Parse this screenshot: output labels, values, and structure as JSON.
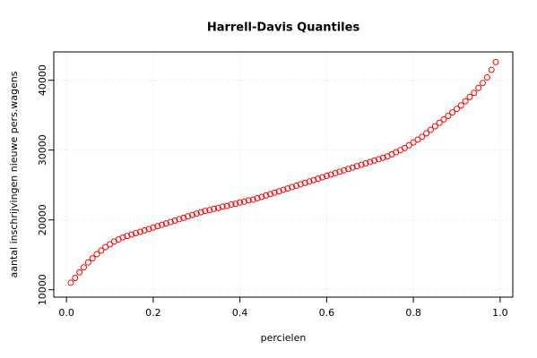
{
  "chart_data": {
    "type": "scatter",
    "title": "Harrell-Davis Quantiles",
    "x_label": "percielen",
    "y_label": "aantal inschrijvingen nieuwe pers.wagens",
    "x": [
      0.01,
      0.02,
      0.03,
      0.04,
      0.05,
      0.06,
      0.07,
      0.08,
      0.09,
      0.1,
      0.11,
      0.12,
      0.13,
      0.14,
      0.15,
      0.16,
      0.17,
      0.18,
      0.19,
      0.2,
      0.21,
      0.22,
      0.23,
      0.24,
      0.25,
      0.26,
      0.27,
      0.28,
      0.29,
      0.3,
      0.31,
      0.32,
      0.33,
      0.34,
      0.35,
      0.36,
      0.37,
      0.38,
      0.39,
      0.4,
      0.41,
      0.42,
      0.43,
      0.44,
      0.45,
      0.46,
      0.47,
      0.48,
      0.49,
      0.5,
      0.51,
      0.52,
      0.53,
      0.54,
      0.55,
      0.56,
      0.57,
      0.58,
      0.59,
      0.6,
      0.61,
      0.62,
      0.63,
      0.64,
      0.65,
      0.66,
      0.67,
      0.68,
      0.69,
      0.7,
      0.71,
      0.72,
      0.73,
      0.74,
      0.75,
      0.76,
      0.77,
      0.78,
      0.79,
      0.8,
      0.81,
      0.82,
      0.83,
      0.84,
      0.85,
      0.86,
      0.87,
      0.88,
      0.89,
      0.9,
      0.91,
      0.92,
      0.93,
      0.94,
      0.95,
      0.96,
      0.97,
      0.98,
      0.99
    ],
    "values": [
      11000,
      11700,
      12500,
      13200,
      13900,
      14500,
      15100,
      15600,
      16100,
      16500,
      16900,
      17200,
      17500,
      17700,
      17900,
      18100,
      18300,
      18500,
      18700,
      18900,
      19100,
      19300,
      19500,
      19700,
      19900,
      20100,
      20300,
      20500,
      20700,
      20900,
      21100,
      21300,
      21400,
      21600,
      21700,
      21900,
      22000,
      22200,
      22300,
      22500,
      22600,
      22800,
      22900,
      23100,
      23300,
      23500,
      23700,
      23900,
      24100,
      24300,
      24500,
      24700,
      24900,
      25100,
      25300,
      25500,
      25700,
      25900,
      26100,
      26300,
      26500,
      26700,
      26900,
      27100,
      27300,
      27500,
      27700,
      27900,
      28100,
      28300,
      28500,
      28700,
      28900,
      29100,
      29400,
      29700,
      30000,
      30300,
      30700,
      31100,
      31500,
      31900,
      32400,
      32900,
      33400,
      33900,
      34400,
      34900,
      35400,
      35900,
      36400,
      37000,
      37600,
      38200,
      38900,
      39600,
      40400,
      41500,
      42600
    ],
    "color": "#ff0000",
    "xlim": [
      -0.0292,
      1.0292
    ],
    "ylim": [
      8940,
      44060
    ],
    "xticks": [
      {
        "value": 0,
        "label": "0.0"
      },
      0.2,
      0.4,
      0.6,
      0.8,
      {
        "value": 1,
        "label": "1.0"
      }
    ],
    "yticks": [
      10000,
      20000,
      30000,
      40000
    ],
    "grid": true
  }
}
